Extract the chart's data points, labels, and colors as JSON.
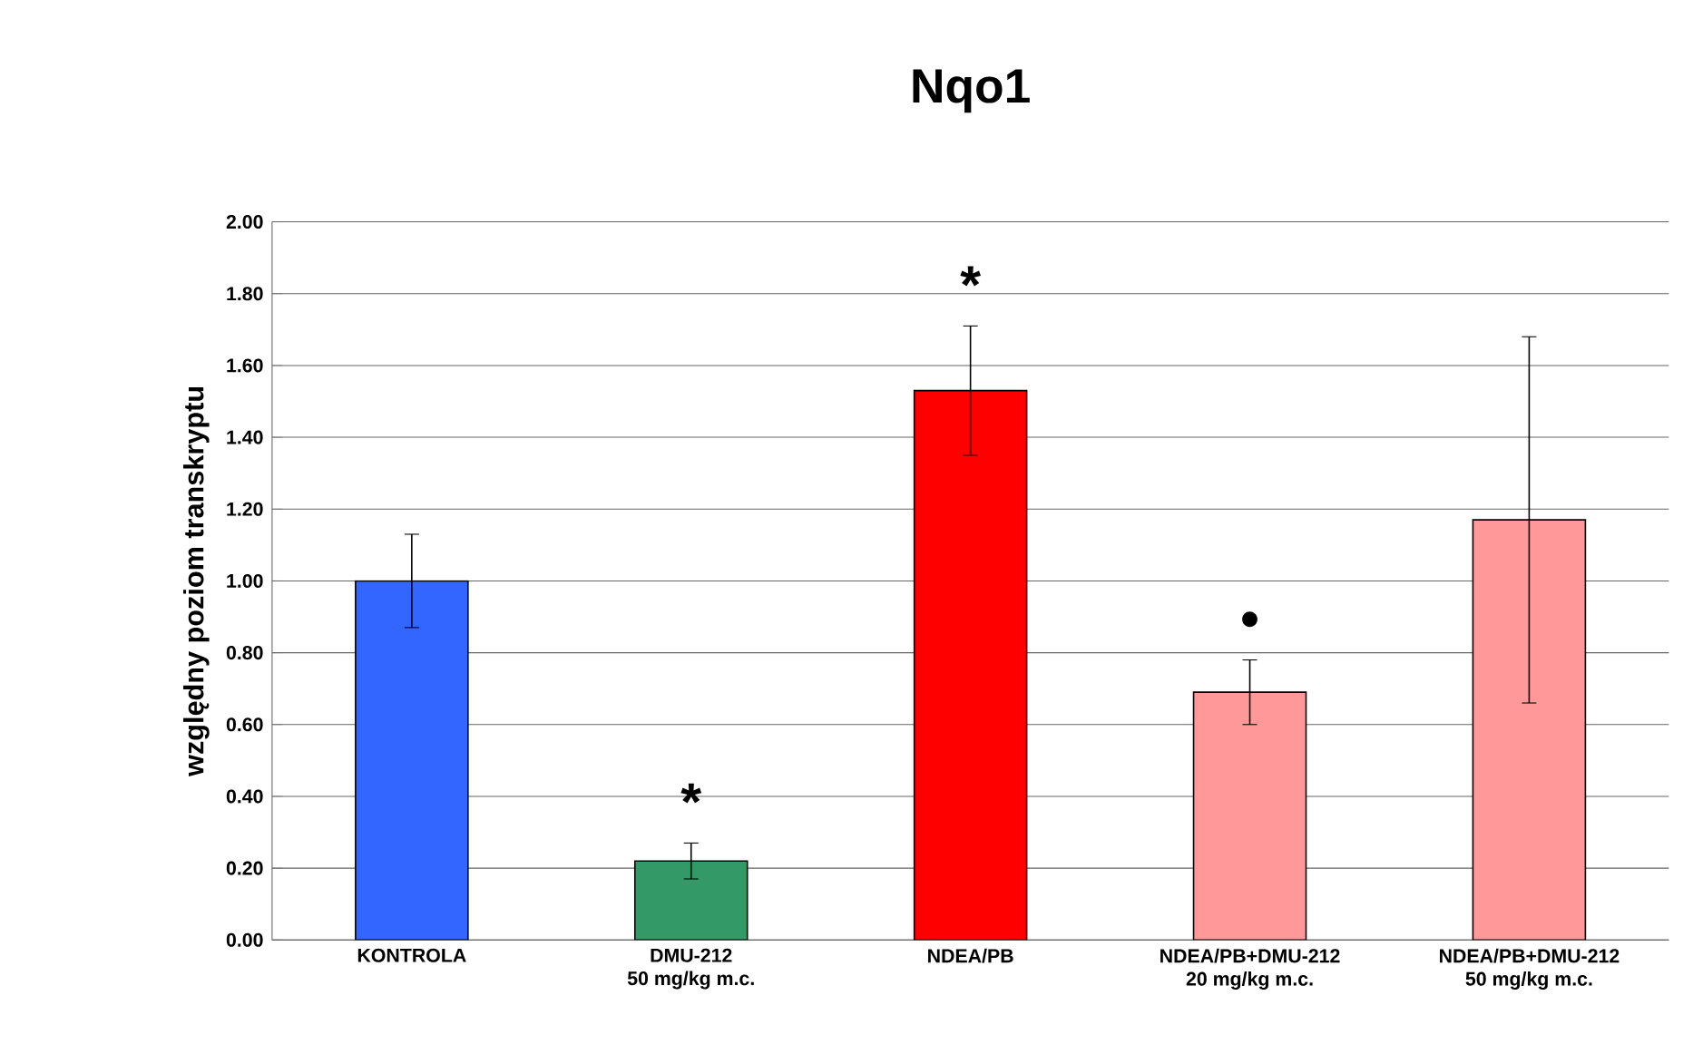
{
  "chart_data": {
    "type": "bar",
    "title": "Nqo1",
    "ylabel": "względny poziom transkryptu",
    "categories": [
      "KONTROLA",
      "DMU-212\n50 mg/kg m.c.",
      "NDEA/PB",
      "NDEA/PB+DMU-212\n20 mg/kg m.c.",
      "NDEA/PB+DMU-212\n50 mg/kg m.c."
    ],
    "values": [
      1.0,
      0.22,
      1.53,
      0.69,
      1.17
    ],
    "errors": [
      0.13,
      0.05,
      0.18,
      0.09,
      0.51
    ],
    "colors": [
      "#3366ff",
      "#339966",
      "#ff0000",
      "#ff9999",
      "#ff9999"
    ],
    "ylim": [
      0,
      2.0
    ],
    "yticks": [
      {
        "value": 0,
        "label": "0.00"
      },
      {
        "value": 0.2,
        "label": "0.20"
      },
      {
        "value": 0.4,
        "label": "0.40"
      },
      {
        "value": 0.6,
        "label": "0.60"
      },
      {
        "value": 0.8,
        "label": "0.80"
      },
      {
        "value": 1.0,
        "label": "1.00"
      },
      {
        "value": 1.2,
        "label": "1.20"
      },
      {
        "value": 1.4,
        "label": "1.40"
      },
      {
        "value": 1.6,
        "label": "1.60"
      },
      {
        "value": 1.8,
        "label": "1.80"
      },
      {
        "value": 2.0,
        "label": "2.00"
      }
    ],
    "grid": "y",
    "annotations": [
      "*",
      "*",
      "•"
    ]
  }
}
